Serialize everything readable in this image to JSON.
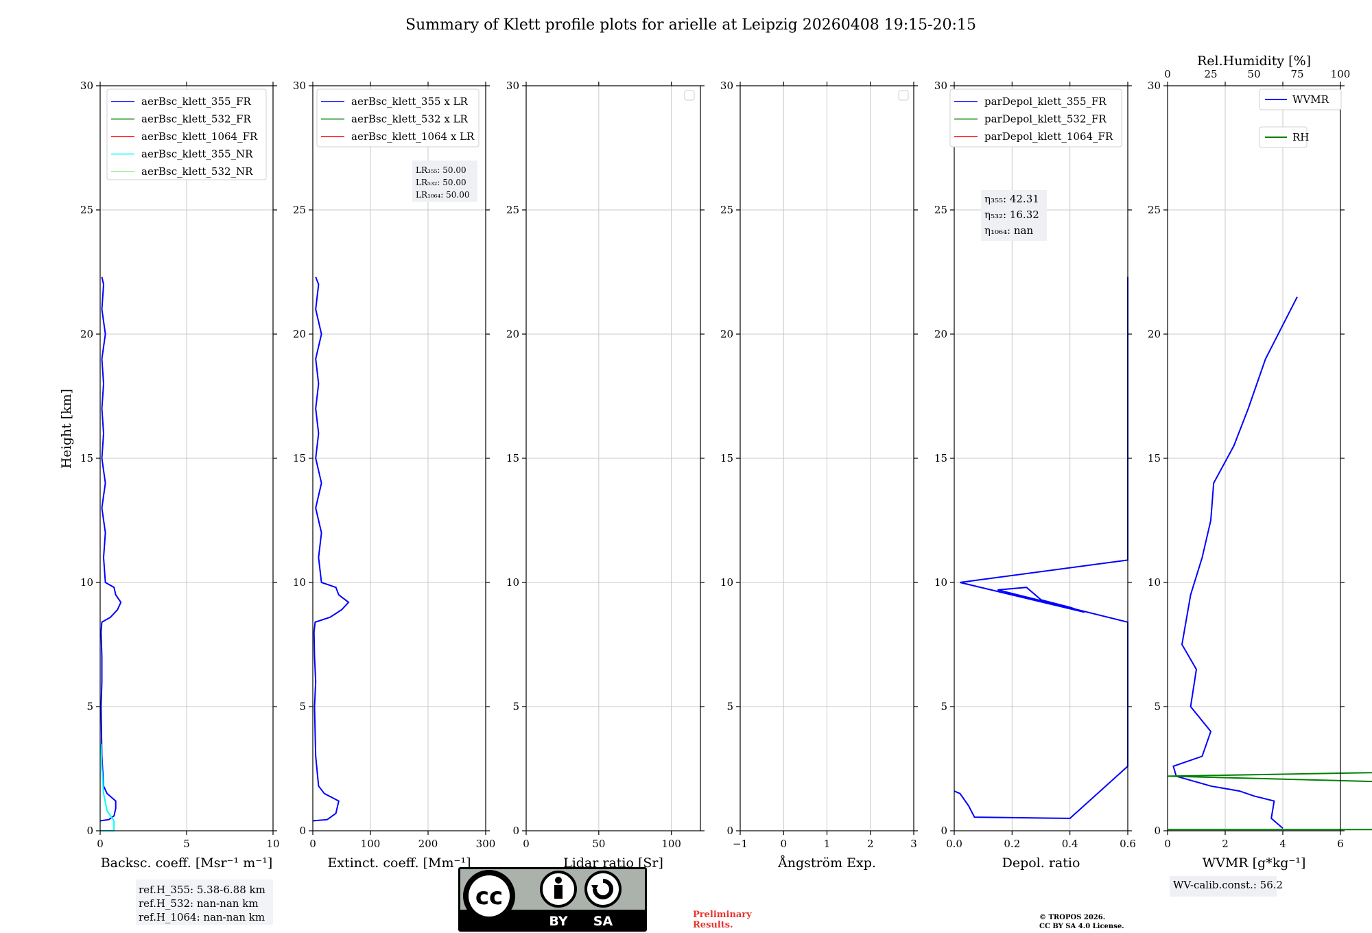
{
  "figure": {
    "title": "Summary of Klett profile plots for arielle at Leipzig 20260408 19:15-20:15",
    "ylabel": "Height [km]",
    "footer_reference": [
      "ref.H_355: 5.38-6.88 km",
      "ref.H_532: nan-nan km",
      "ref.H_1064: nan-nan km"
    ],
    "footer_preliminary": [
      "Preliminary",
      "Results."
    ],
    "footer_copyright": [
      "© TROPOS 2026.",
      "CC BY SA 4.0 License."
    ],
    "license_badge": {
      "cc": "cc",
      "by": "BY",
      "sa": "SA"
    }
  },
  "chart_data": [
    {
      "type": "line",
      "panel": "backscatter",
      "xlabel": "Backsc. coeff. [Msr⁻¹ m⁻¹]",
      "xlim": [
        0,
        10
      ],
      "ylim": [
        0,
        30
      ],
      "xticks": [
        "0",
        "5",
        "10"
      ],
      "yticks": [
        "0",
        "5",
        "10",
        "15",
        "20",
        "25",
        "30"
      ],
      "legend": [
        {
          "label": "aerBsc_klett_355_FR",
          "color": "#0000ff"
        },
        {
          "label": "aerBsc_klett_532_FR",
          "color": "#008000"
        },
        {
          "label": "aerBsc_klett_1064_FR",
          "color": "#ff0000"
        },
        {
          "label": "aerBsc_klett_355_NR",
          "color": "#00ffff"
        },
        {
          "label": "aerBsc_klett_532_NR",
          "color": "#90ee90"
        }
      ],
      "series": [
        {
          "name": "aerBsc_klett_355_FR",
          "color": "#0000ff",
          "points": [
            [
              0.0,
              0.4
            ],
            [
              0.5,
              0.45
            ],
            [
              0.8,
              0.6
            ],
            [
              0.9,
              0.9
            ],
            [
              0.9,
              1.2
            ],
            [
              0.4,
              1.5
            ],
            [
              0.2,
              1.8
            ],
            [
              0.1,
              3
            ],
            [
              0.05,
              5
            ],
            [
              0.1,
              6
            ],
            [
              0.1,
              7
            ],
            [
              0.05,
              8
            ],
            [
              0.1,
              8.4
            ],
            [
              0.6,
              8.6
            ],
            [
              1.0,
              8.9
            ],
            [
              1.2,
              9.2
            ],
            [
              0.9,
              9.5
            ],
            [
              0.8,
              9.8
            ],
            [
              0.3,
              10.0
            ],
            [
              0.2,
              11
            ],
            [
              0.3,
              12
            ],
            [
              0.1,
              13
            ],
            [
              0.3,
              14
            ],
            [
              0.1,
              15
            ],
            [
              0.2,
              16
            ],
            [
              0.1,
              17
            ],
            [
              0.2,
              18
            ],
            [
              0.1,
              19
            ],
            [
              0.3,
              20
            ],
            [
              0.1,
              21
            ],
            [
              0.2,
              22
            ],
            [
              0.1,
              22.3
            ]
          ]
        },
        {
          "name": "aerBsc_klett_355_NR",
          "color": "#00ffff",
          "points": [
            [
              0.0,
              0.0
            ],
            [
              0.8,
              0.0
            ],
            [
              0.8,
              0.4
            ],
            [
              0.4,
              0.8
            ],
            [
              0.2,
              1.5
            ],
            [
              0.1,
              2.5
            ],
            [
              0.05,
              3.5
            ]
          ]
        }
      ],
      "annotation": []
    },
    {
      "type": "line",
      "panel": "extinction",
      "xlabel": "Extinct. coeff. [Mm⁻¹]",
      "xlim": [
        0,
        300
      ],
      "ylim": [
        0,
        30
      ],
      "xticks": [
        "0",
        "100",
        "200",
        "300"
      ],
      "yticks": [
        "0",
        "5",
        "10",
        "15",
        "20",
        "25",
        "30"
      ],
      "legend": [
        {
          "label": "aerBsc_klett_355 x LR",
          "color": "#0000ff"
        },
        {
          "label": "aerBsc_klett_532 x LR",
          "color": "#008000"
        },
        {
          "label": "aerBsc_klett_1064 x LR",
          "color": "#ff0000"
        }
      ],
      "series": [
        {
          "name": "aerBsc_klett_355 x LR",
          "color": "#0000ff",
          "points": [
            [
              0,
              0.4
            ],
            [
              25,
              0.45
            ],
            [
              40,
              0.7
            ],
            [
              45,
              1.2
            ],
            [
              20,
              1.5
            ],
            [
              10,
              1.8
            ],
            [
              5,
              3
            ],
            [
              3,
              5
            ],
            [
              5,
              6
            ],
            [
              3,
              7
            ],
            [
              2,
              8
            ],
            [
              4,
              8.4
            ],
            [
              30,
              8.6
            ],
            [
              50,
              8.9
            ],
            [
              62,
              9.2
            ],
            [
              45,
              9.5
            ],
            [
              40,
              9.8
            ],
            [
              15,
              10.0
            ],
            [
              10,
              11
            ],
            [
              15,
              12
            ],
            [
              5,
              13
            ],
            [
              15,
              14
            ],
            [
              5,
              15
            ],
            [
              10,
              16
            ],
            [
              5,
              17
            ],
            [
              10,
              18
            ],
            [
              5,
              19
            ],
            [
              15,
              20
            ],
            [
              5,
              21
            ],
            [
              10,
              22
            ],
            [
              5,
              22.3
            ]
          ]
        }
      ],
      "annotation": [
        "LR₃₅₅: 50.00",
        "LR₅₃₂: 50.00",
        "LR₁₀₆₄: 50.00"
      ]
    },
    {
      "type": "line",
      "panel": "lidar_ratio",
      "xlabel": "Lidar ratio [Sr]",
      "xlim": [
        0,
        120
      ],
      "ylim": [
        0,
        30
      ],
      "xticks": [
        "0",
        "50",
        "100"
      ],
      "yticks": [
        "0",
        "5",
        "10",
        "15",
        "20",
        "25",
        "30"
      ],
      "legend": [],
      "series": [],
      "annotation": []
    },
    {
      "type": "line",
      "panel": "angstrom",
      "xlabel": "Ångström Exp.",
      "xlim": [
        -1,
        3
      ],
      "ylim": [
        0,
        30
      ],
      "xticks": [
        "−1",
        "0",
        "1",
        "2",
        "3"
      ],
      "yticks": [
        "0",
        "5",
        "10",
        "15",
        "20",
        "25",
        "30"
      ],
      "legend": [],
      "series": [],
      "annotation": []
    },
    {
      "type": "line",
      "panel": "depolarization",
      "xlabel": "Depol. ratio",
      "xlim": [
        0,
        0.6
      ],
      "ylim": [
        0,
        30
      ],
      "xticks": [
        "0.0",
        "0.2",
        "0.4",
        "0.6"
      ],
      "yticks": [
        "0",
        "5",
        "10",
        "15",
        "20",
        "25",
        "30"
      ],
      "legend": [
        {
          "label": "parDepol_klett_355_FR",
          "color": "#0000ff"
        },
        {
          "label": "parDepol_klett_532_FR",
          "color": "#008000"
        },
        {
          "label": "parDepol_klett_1064_FR",
          "color": "#ff0000"
        }
      ],
      "series": [
        {
          "name": "parDepol_klett_355_FR",
          "color": "#0000ff",
          "points": [
            [
              0.0,
              1.6
            ],
            [
              0.02,
              1.5
            ],
            [
              0.05,
              1.0
            ],
            [
              0.07,
              0.55
            ],
            [
              0.4,
              0.5
            ],
            [
              0.6,
              2.6
            ],
            [
              0.6,
              3.5
            ],
            [
              0.6,
              4.5
            ],
            [
              0.6,
              5.5
            ],
            [
              0.6,
              6.5
            ],
            [
              0.6,
              7.5
            ],
            [
              0.6,
              8.4
            ],
            [
              0.15,
              9.7
            ],
            [
              0.25,
              9.8
            ],
            [
              0.3,
              9.3
            ],
            [
              0.4,
              9.0
            ],
            [
              0.45,
              8.8
            ],
            [
              0.02,
              10.0
            ],
            [
              0.6,
              10.9
            ],
            [
              0.6,
              14
            ],
            [
              0.6,
              15.5
            ],
            [
              0.6,
              17
            ],
            [
              0.6,
              18.5
            ],
            [
              0.6,
              19.5
            ],
            [
              0.6,
              22.3
            ]
          ]
        }
      ],
      "annotation": [
        "η₃₅₅: 42.31",
        "η₅₃₂: 16.32",
        "η₁₀₆₄: nan"
      ]
    },
    {
      "type": "line",
      "panel": "wvmr",
      "xlabel": "WVMR [g*kg⁻¹]",
      "xlim": [
        0,
        6
      ],
      "ylim": [
        0,
        30
      ],
      "xticks": [
        "0",
        "2",
        "4",
        "6"
      ],
      "yticks": [
        "0",
        "5",
        "10",
        "15",
        "20",
        "25",
        "30"
      ],
      "top_axis": {
        "label": "Rel.Humidity [%]",
        "xlim": [
          0,
          100
        ],
        "xticks": [
          "0",
          "25",
          "50",
          "75",
          "100"
        ]
      },
      "legend": [
        {
          "label": "WVMR",
          "color": "#0000ff"
        },
        {
          "label": "RH",
          "color": "#008000"
        }
      ],
      "series": [
        {
          "name": "WVMR",
          "color": "#0000ff",
          "points": [
            [
              4.0,
              0.1
            ],
            [
              3.6,
              0.5
            ],
            [
              3.7,
              1.2
            ],
            [
              3.0,
              1.4
            ],
            [
              2.5,
              1.6
            ],
            [
              1.5,
              1.8
            ],
            [
              0.3,
              2.2
            ],
            [
              0.2,
              2.6
            ],
            [
              1.2,
              3.0
            ],
            [
              1.5,
              4.0
            ],
            [
              0.8,
              5.0
            ],
            [
              1.0,
              6.5
            ],
            [
              0.5,
              7.5
            ],
            [
              0.8,
              9.5
            ],
            [
              1.2,
              11
            ],
            [
              1.5,
              12.5
            ],
            [
              1.6,
              14
            ],
            [
              2.3,
              15.5
            ],
            [
              2.8,
              17
            ],
            [
              3.4,
              19
            ],
            [
              4.5,
              21.5
            ]
          ]
        },
        {
          "name": "RH",
          "color": "#008000",
          "points": [
            [
              0,
              0.05
            ],
            [
              55,
              0.05
            ],
            [
              40,
              0.5
            ],
            [
              38,
              1.0
            ],
            [
              28,
              1.3
            ],
            [
              20,
              1.6
            ],
            [
              0,
              2.2
            ],
            [
              20,
              2.6
            ],
            [
              40,
              3.5
            ],
            [
              60,
              4.5
            ],
            [
              30,
              5.2
            ],
            [
              90,
              6.0
            ],
            [
              100,
              7.0
            ],
            [
              95,
              8.5
            ],
            [
              60,
              8.0
            ],
            [
              35,
              5.5
            ],
            [
              40,
              4.0
            ]
          ]
        }
      ],
      "annotation": [
        "WV-calib.const.: 56.2"
      ]
    }
  ]
}
